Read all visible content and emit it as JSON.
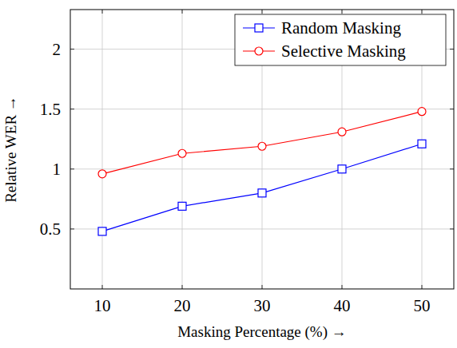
{
  "chart_data": {
    "type": "line",
    "x": [
      10,
      20,
      30,
      40,
      50
    ],
    "series": [
      {
        "name": "Random Masking",
        "color": "#0000ff",
        "marker": "square",
        "values": [
          0.48,
          0.69,
          0.8,
          1.0,
          1.21
        ]
      },
      {
        "name": "Selective Masking",
        "color": "#ff0000",
        "marker": "circle",
        "values": [
          0.96,
          1.13,
          1.19,
          1.31,
          1.48
        ]
      }
    ],
    "x_label": "Masking Percentage (%) →",
    "y_label": "Relative WER →",
    "xlim": [
      6,
      54
    ],
    "xticks": [
      10,
      20,
      30,
      40,
      50
    ],
    "ylim": [
      0,
      2.33
    ],
    "yticks": [
      0.5,
      1,
      1.5,
      2
    ],
    "grid": true,
    "legend": "top-right"
  }
}
